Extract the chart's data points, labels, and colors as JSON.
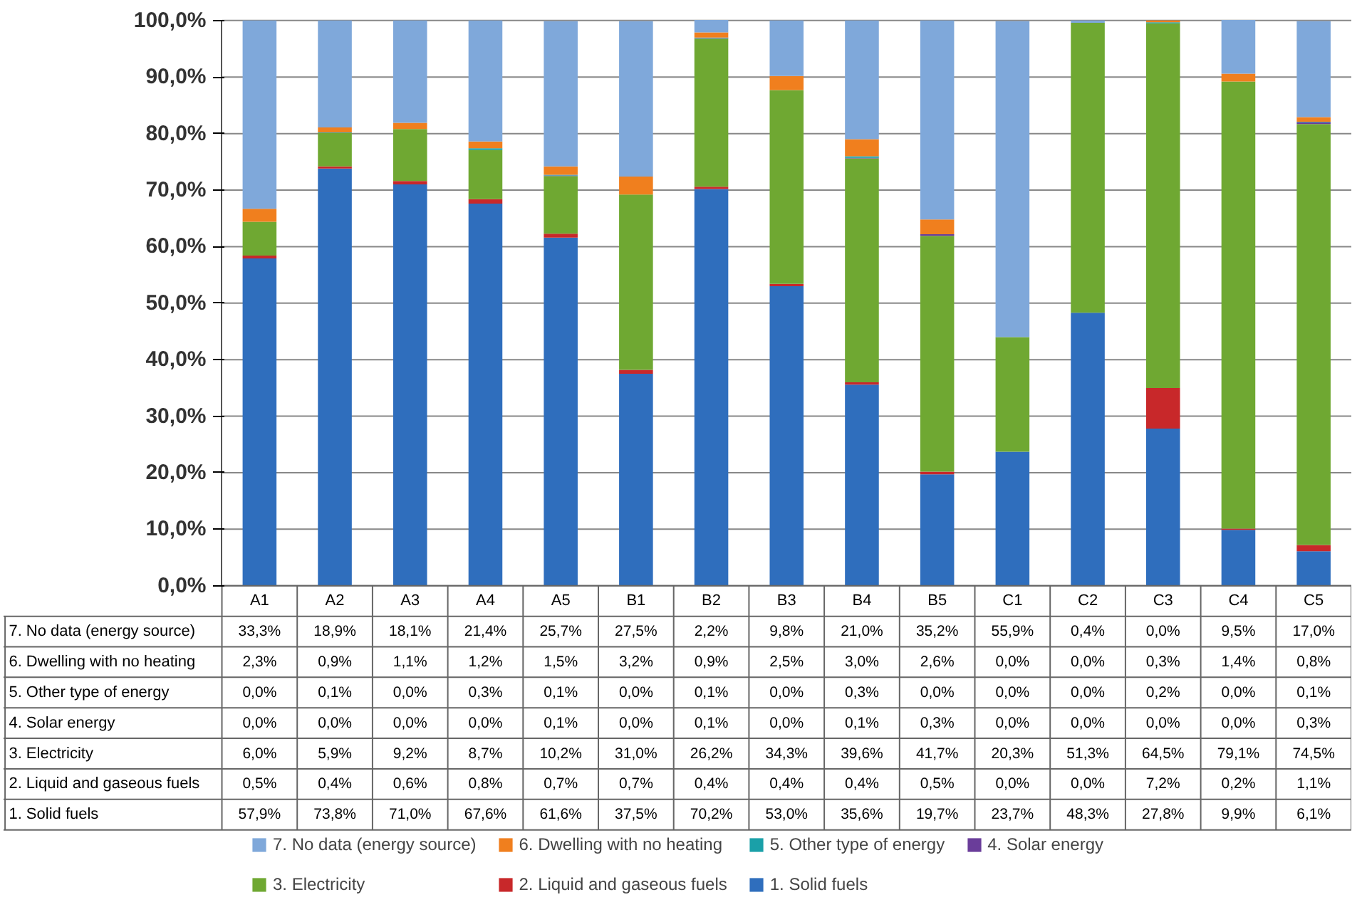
{
  "chart_data": {
    "type": "bar",
    "stacked": true,
    "categories": [
      "A1",
      "A2",
      "A3",
      "A4",
      "A5",
      "B1",
      "B2",
      "B3",
      "B4",
      "B5",
      "C1",
      "C2",
      "C3",
      "C4",
      "C5"
    ],
    "ylim": [
      0,
      100
    ],
    "yticks": [
      {
        "value": 0,
        "label": "0,0%"
      },
      {
        "value": 10,
        "label": "10,0%"
      },
      {
        "value": 20,
        "label": "20,0%"
      },
      {
        "value": 30,
        "label": "30,0%"
      },
      {
        "value": 40,
        "label": "40,0%"
      },
      {
        "value": 50,
        "label": "50,0%"
      },
      {
        "value": 60,
        "label": "60,0%"
      },
      {
        "value": 70,
        "label": "70,0%"
      },
      {
        "value": 80,
        "label": "80,0%"
      },
      {
        "value": 90,
        "label": "90,0%"
      },
      {
        "value": 100,
        "label": "100,0%"
      }
    ],
    "grid": "y",
    "legend": "bottom",
    "series": [
      {
        "name": "1. Solid fuels",
        "color": "#2f6ebd",
        "values": [
          57.9,
          73.8,
          71.0,
          67.6,
          61.6,
          37.5,
          70.2,
          53.0,
          35.6,
          19.7,
          23.7,
          48.3,
          27.8,
          9.9,
          6.1
        ],
        "value_labels": [
          "57,9%",
          "73,8%",
          "71,0%",
          "67,6%",
          "61,6%",
          "37,5%",
          "70,2%",
          "53,0%",
          "35,6%",
          "19,7%",
          "23,7%",
          "48,3%",
          "27,8%",
          "9,9%",
          "6,1%"
        ]
      },
      {
        "name": "2. Liquid and gaseous fuels",
        "color": "#c8282a",
        "values": [
          0.5,
          0.4,
          0.6,
          0.8,
          0.7,
          0.7,
          0.4,
          0.4,
          0.4,
          0.5,
          0.0,
          0.0,
          7.2,
          0.2,
          1.1
        ],
        "value_labels": [
          "0,5%",
          "0,4%",
          "0,6%",
          "0,8%",
          "0,7%",
          "0,7%",
          "0,4%",
          "0,4%",
          "0,4%",
          "0,5%",
          "0,0%",
          "0,0%",
          "7,2%",
          "0,2%",
          "1,1%"
        ]
      },
      {
        "name": "3. Electricity",
        "color": "#6fa832",
        "values": [
          6.0,
          5.9,
          9.2,
          8.7,
          10.2,
          31.0,
          26.2,
          34.3,
          39.6,
          41.7,
          20.3,
          51.3,
          64.5,
          79.1,
          74.5
        ],
        "value_labels": [
          "6,0%",
          "5,9%",
          "9,2%",
          "8,7%",
          "10,2%",
          "31,0%",
          "26,2%",
          "34,3%",
          "39,6%",
          "41,7%",
          "20,3%",
          "51,3%",
          "64,5%",
          "79,1%",
          "74,5%"
        ]
      },
      {
        "name": "4. Solar energy",
        "color": "#6a3d9a",
        "values": [
          0.0,
          0.0,
          0.0,
          0.0,
          0.1,
          0.0,
          0.1,
          0.0,
          0.1,
          0.3,
          0.0,
          0.0,
          0.0,
          0.0,
          0.3
        ],
        "value_labels": [
          "0,0%",
          "0,0%",
          "0,0%",
          "0,0%",
          "0,1%",
          "0,0%",
          "0,1%",
          "0,0%",
          "0,1%",
          "0,3%",
          "0,0%",
          "0,0%",
          "0,0%",
          "0,0%",
          "0,3%"
        ]
      },
      {
        "name": "5. Other type of energy",
        "color": "#1aa0a8",
        "values": [
          0.0,
          0.1,
          0.0,
          0.3,
          0.1,
          0.0,
          0.1,
          0.0,
          0.3,
          0.0,
          0.0,
          0.0,
          0.2,
          0.0,
          0.1
        ],
        "value_labels": [
          "0,0%",
          "0,1%",
          "0,0%",
          "0,3%",
          "0,1%",
          "0,0%",
          "0,1%",
          "0,0%",
          "0,3%",
          "0,0%",
          "0,0%",
          "0,0%",
          "0,2%",
          "0,0%",
          "0,1%"
        ]
      },
      {
        "name": "6. Dwelling with no heating",
        "color": "#f07f1e",
        "values": [
          2.3,
          0.9,
          1.1,
          1.2,
          1.5,
          3.2,
          0.9,
          2.5,
          3.0,
          2.6,
          0.0,
          0.0,
          0.3,
          1.4,
          0.8
        ],
        "value_labels": [
          "2,3%",
          "0,9%",
          "1,1%",
          "1,2%",
          "1,5%",
          "3,2%",
          "0,9%",
          "2,5%",
          "3,0%",
          "2,6%",
          "0,0%",
          "0,0%",
          "0,3%",
          "1,4%",
          "0,8%"
        ]
      },
      {
        "name": "7. No data (energy source)",
        "color": "#7fa8da",
        "values": [
          33.3,
          18.9,
          18.1,
          21.4,
          25.7,
          27.5,
          2.2,
          9.8,
          21.0,
          35.2,
          55.9,
          0.4,
          0.0,
          9.5,
          17.0
        ],
        "value_labels": [
          "33,3%",
          "18,9%",
          "18,1%",
          "21,4%",
          "25,7%",
          "27,5%",
          "2,2%",
          "9,8%",
          "21,0%",
          "35,2%",
          "55,9%",
          "0,4%",
          "0,0%",
          "9,5%",
          "17,0%"
        ]
      }
    ]
  }
}
